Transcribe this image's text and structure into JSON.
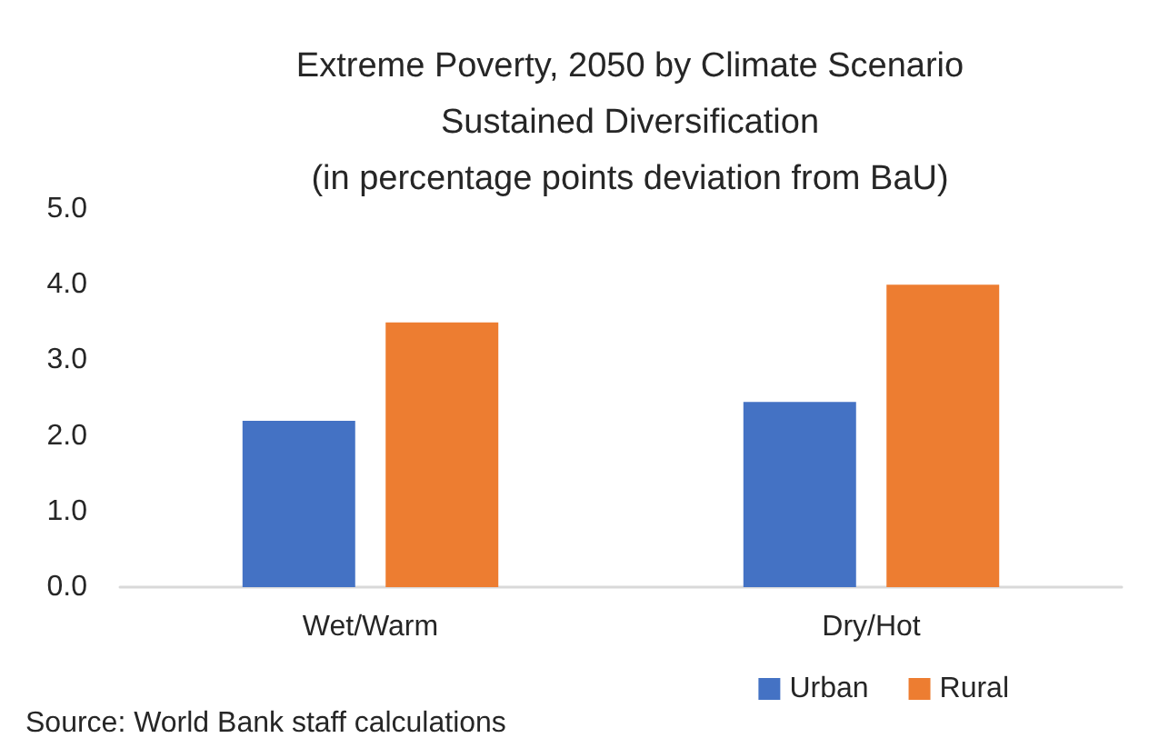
{
  "chart_data": {
    "type": "bar",
    "title": "Extreme Poverty, 2050 by Climate Scenario\nSustained Diversification\n(in percentage points deviation from BaU)",
    "categories": [
      "Wet/Warm",
      "Dry/Hot"
    ],
    "series": [
      {
        "name": "Urban",
        "color": "#4472c4",
        "values": [
          2.2,
          2.45
        ]
      },
      {
        "name": "Rural",
        "color": "#ed7d31",
        "values": [
          3.5,
          4.0
        ]
      }
    ],
    "ylim": [
      0,
      5
    ],
    "yticks": [
      {
        "value": 0,
        "label": "0.0"
      },
      {
        "value": 1,
        "label": "1.0"
      },
      {
        "value": 2,
        "label": "2.0"
      },
      {
        "value": 3,
        "label": "3.0"
      },
      {
        "value": 4,
        "label": "4.0"
      },
      {
        "value": 5,
        "label": "5.0"
      }
    ],
    "grid": false,
    "legend": "bottom right",
    "annotations": [
      "Source: World Bank staff calculations"
    ]
  }
}
